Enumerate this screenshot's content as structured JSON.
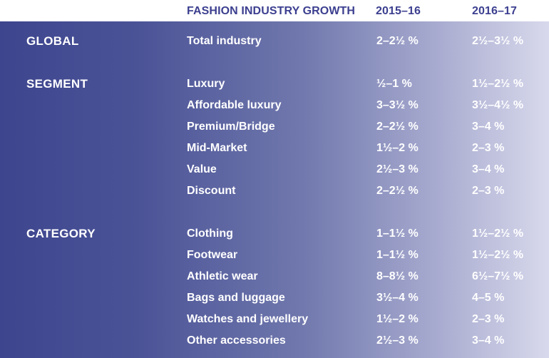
{
  "header": {
    "title": "FASHION INDUSTRY GROWTH",
    "col1": "2015–16",
    "col2": "2016–17"
  },
  "sections": [
    {
      "name": "GLOBAL",
      "rows": [
        {
          "label": "Total industry",
          "v1": "2–2½ %",
          "v2": "2½–3½ %"
        }
      ]
    },
    {
      "name": "SEGMENT",
      "rows": [
        {
          "label": "Luxury",
          "v1": "½–1 %",
          "v2": "1½–2½ %"
        },
        {
          "label": "Affordable luxury",
          "v1": "3–3½ %",
          "v2": "3½–4½ %"
        },
        {
          "label": "Premium/Bridge",
          "v1": "2–2½ %",
          "v2": "3–4 %"
        },
        {
          "label": "Mid-Market",
          "v1": "1½–2 %",
          "v2": "2–3 %"
        },
        {
          "label": "Value",
          "v1": "2½–3 %",
          "v2": "3–4 %"
        },
        {
          "label": "Discount",
          "v1": "2–2½ %",
          "v2": "2–3 %"
        }
      ]
    },
    {
      "name": "CATEGORY",
      "rows": [
        {
          "label": "Clothing",
          "v1": "1–1½ %",
          "v2": "1½–2½ %"
        },
        {
          "label": "Footwear",
          "v1": "1–1½ %",
          "v2": "1½–2½ %"
        },
        {
          "label": "Athletic wear",
          "v1": "8–8½ %",
          "v2": "6½–7½ %"
        },
        {
          "label": "Bags and luggage",
          "v1": "3½–4 %",
          "v2": "4–5 %"
        },
        {
          "label": "Watches and jewellery",
          "v1": "1½–2 %",
          "v2": "2–3 %"
        },
        {
          "label": "Other accessories",
          "v1": "2½–3 %",
          "v2": "3–4 %"
        }
      ]
    }
  ]
}
